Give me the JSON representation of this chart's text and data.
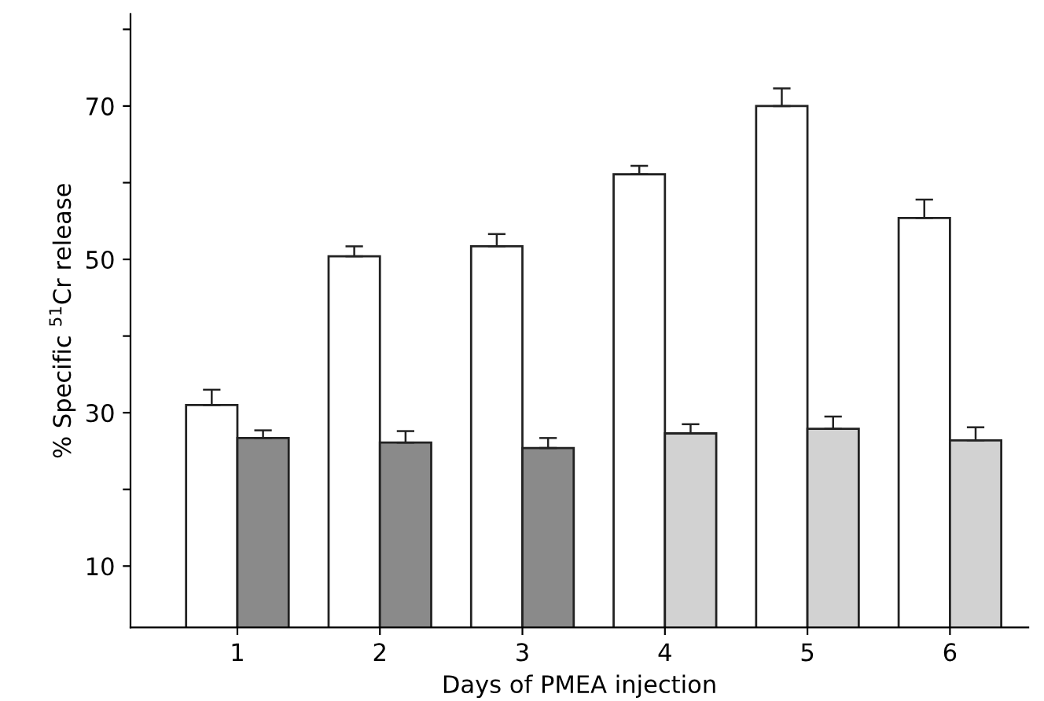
{
  "chart_data": {
    "type": "bar",
    "xlabel": "Days of PMEA injection",
    "ylabel": "% Specific $^{51}$Cr release",
    "categories": [
      "1",
      "2",
      "3",
      "4",
      "5",
      "6"
    ],
    "series": [
      {
        "color": "#ffffff",
        "values": [
          31.0,
          50.4,
          51.7,
          61.1,
          70.0,
          55.4
        ],
        "errors": [
          [
            31.0,
            33.0
          ],
          [
            50.4,
            51.7
          ],
          [
            51.7,
            53.3
          ],
          [
            61.1,
            62.2
          ],
          [
            70.0,
            72.3
          ],
          [
            55.4,
            57.8
          ]
        ]
      },
      {
        "colors": [
          "#8a8a8a",
          "#8a8a8a",
          "#8a8a8a",
          "#d2d2d2",
          "#d2d2d2",
          "#d2d2d2"
        ],
        "values": [
          26.7,
          26.1,
          25.4,
          27.3,
          27.9,
          26.4
        ],
        "errors": [
          [
            26.7,
            27.7
          ],
          [
            26.1,
            27.6
          ],
          [
            25.4,
            26.7
          ],
          [
            27.3,
            28.5
          ],
          [
            27.9,
            29.5
          ],
          [
            26.4,
            28.1
          ]
        ]
      }
    ],
    "ylim": [
      2,
      82
    ],
    "yticks": [
      10,
      {
        "value": 20,
        "label": null
      },
      30,
      {
        "value": 40,
        "label": null
      },
      50,
      {
        "value": 60,
        "label": null
      },
      70,
      {
        "value": 80,
        "label": null
      }
    ],
    "grid": false,
    "legend": false
  }
}
